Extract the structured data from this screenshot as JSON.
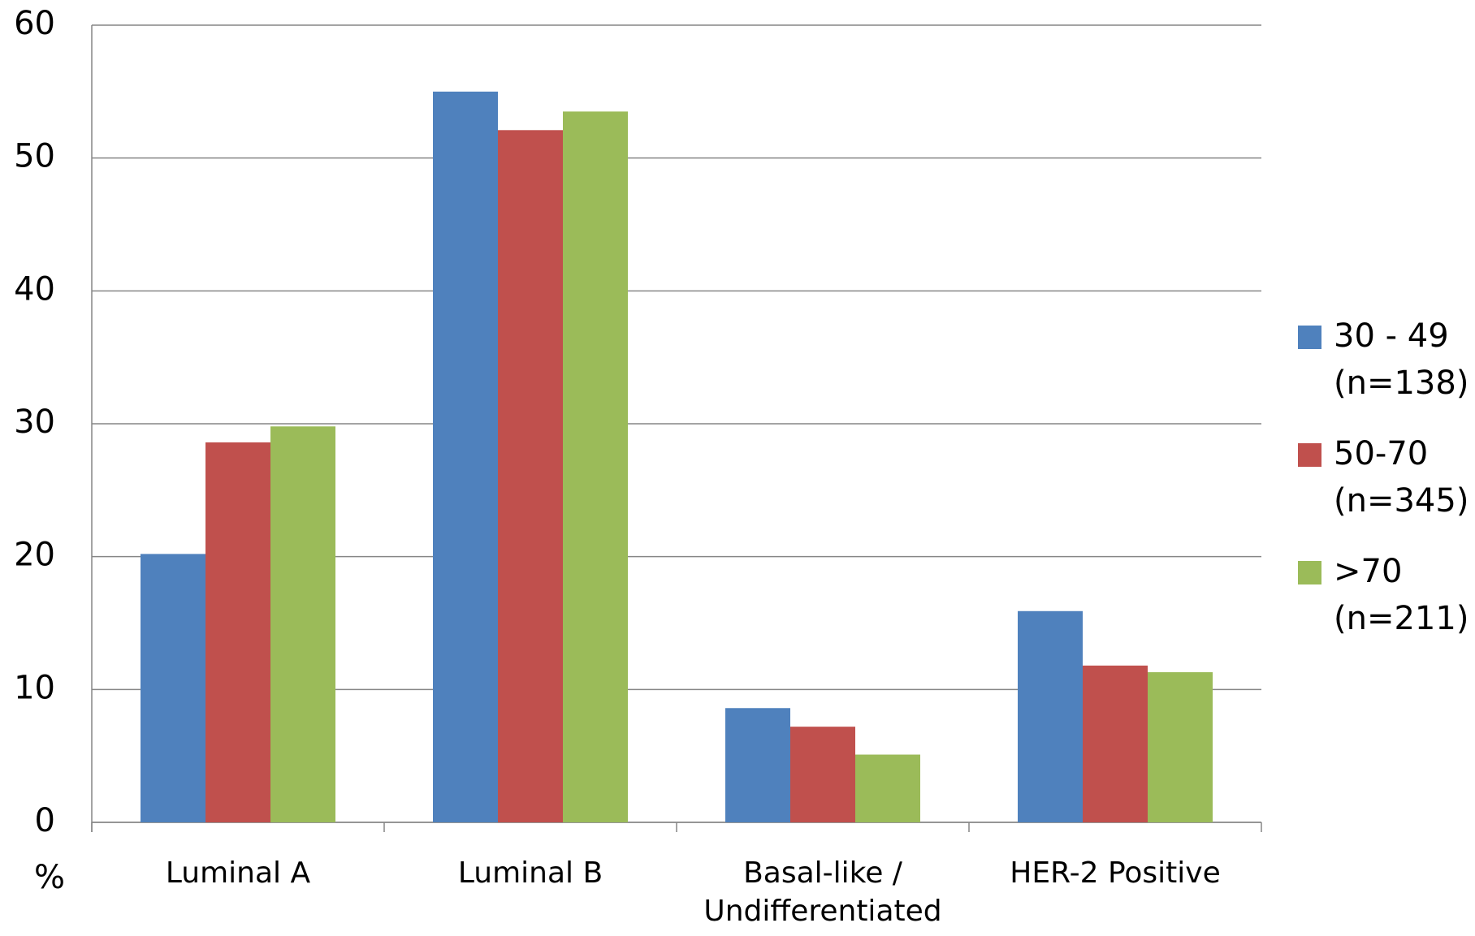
{
  "chart_data": {
    "type": "bar",
    "y_label": "%",
    "categories": [
      "Luminal A",
      "Luminal B",
      "Basal-like / Undifferentiated",
      "HER-2 Positive"
    ],
    "series": [
      {
        "name": "30 - 49 (n=138)",
        "color": "#4f81bd",
        "values": [
          20.2,
          55,
          8.6,
          15.9
        ]
      },
      {
        "name": "50-70 (n=345)",
        "color": "#c0504d",
        "values": [
          28.6,
          52.1,
          7.2,
          11.8
        ]
      },
      {
        "name": ">70 (n=211)",
        "color": "#9bbb59",
        "values": [
          29.8,
          53.5,
          5.1,
          11.3
        ]
      }
    ],
    "ylim": [
      0,
      60
    ],
    "yticks": [
      0,
      10,
      20,
      30,
      40,
      50,
      60
    ],
    "grid": true,
    "legend": "right"
  }
}
